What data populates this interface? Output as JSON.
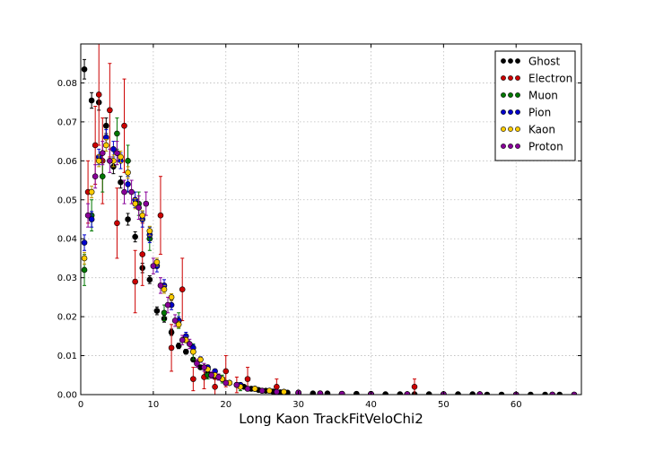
{
  "chart_data": {
    "type": "scatter",
    "title": "",
    "xlabel": "Long Kaon TrackFitVeloChi2",
    "ylabel": "",
    "xlim": [
      0,
      69
    ],
    "ylim": [
      0,
      0.09
    ],
    "xticks": [
      "0",
      "10",
      "20",
      "30",
      "40",
      "50",
      "60"
    ],
    "xtick_values": [
      0,
      10,
      20,
      30,
      40,
      50,
      60
    ],
    "yticks": [
      "0.00",
      "0.01",
      "0.02",
      "0.03",
      "0.04",
      "0.05",
      "0.06",
      "0.07",
      "0.08"
    ],
    "ytick_values": [
      0,
      0.01,
      0.02,
      0.03,
      0.04,
      0.05,
      0.06,
      0.07,
      0.08
    ],
    "grid": true,
    "legend_position": "top-right",
    "series": [
      {
        "name": "Ghost",
        "color": "#000000",
        "errcolor": "#000000",
        "x": [
          0.5,
          1.5,
          2.5,
          3.5,
          4.5,
          5.5,
          6.5,
          7.5,
          8.5,
          9.5,
          10.5,
          11.5,
          12.5,
          13.5,
          14.5,
          15.5,
          16.5,
          17.5,
          18.5,
          19.5,
          20.5,
          21.5,
          22.5,
          23.5,
          24.5,
          25.5,
          26.5,
          27.5,
          28.5,
          30,
          32,
          34,
          36,
          38,
          40,
          42,
          44,
          46,
          48,
          50,
          52,
          54,
          56,
          58,
          60,
          62,
          64,
          66,
          68
        ],
        "y": [
          0.0835,
          0.0755,
          0.075,
          0.069,
          0.0585,
          0.0545,
          0.045,
          0.0405,
          0.0325,
          0.0295,
          0.0215,
          0.0195,
          0.016,
          0.0125,
          0.011,
          0.009,
          0.007,
          0.0055,
          0.0045,
          0.004,
          0.003,
          0.0025,
          0.002,
          0.0015,
          0.0012,
          0.001,
          0.0008,
          0.0006,
          0.0005,
          0.0004,
          0.0003,
          0.0003,
          0.0002,
          0.0002,
          0.0002,
          0.0001,
          0.0001,
          0.0001,
          0.0001,
          0.0001,
          0.0001,
          0.0001,
          0,
          0,
          0,
          0,
          0,
          0,
          0
        ],
        "err": [
          0.0025,
          0.002,
          0.002,
          0.002,
          0.0018,
          0.0015,
          0.0015,
          0.0013,
          0.0012,
          0.001,
          0.001,
          0.0009,
          0.0008,
          0.0007,
          0.0006,
          0.0005,
          0.0005,
          0.0004,
          0.0004,
          0.0003,
          0.0003,
          0.0003,
          0.0002,
          0.0002,
          0.0002,
          0.0002,
          0.0001,
          0.0001,
          0.0001,
          0.0001,
          0.0001,
          0.0001,
          0.0001,
          0.0001,
          0.0001,
          0,
          0,
          0,
          0,
          0,
          0,
          0,
          0,
          0,
          0,
          0,
          0,
          0,
          0
        ]
      },
      {
        "name": "Electron",
        "color": "#cc0000",
        "errcolor": "#cc0000",
        "x": [
          1,
          2,
          2.5,
          3,
          4,
          5,
          6,
          7.5,
          8.5,
          11,
          12.5,
          14,
          15.5,
          17,
          18.5,
          20,
          21.5,
          23,
          27,
          46
        ],
        "y": [
          0.052,
          0.064,
          0.077,
          0.06,
          0.073,
          0.044,
          0.069,
          0.029,
          0.036,
          0.046,
          0.012,
          0.027,
          0.004,
          0.0045,
          0.002,
          0.006,
          0.0025,
          0.004,
          0.002,
          0.002
        ],
        "err": [
          0.008,
          0.01,
          0.013,
          0.011,
          0.012,
          0.009,
          0.012,
          0.008,
          0.008,
          0.01,
          0.006,
          0.008,
          0.003,
          0.003,
          0.002,
          0.004,
          0.002,
          0.003,
          0.002,
          0.002
        ]
      },
      {
        "name": "Muon",
        "color": "#007700",
        "errcolor": "#007700",
        "x": [
          0.5,
          1.5,
          3,
          5,
          6.5,
          8,
          9.5,
          11.5,
          13.5,
          15.5,
          17.5,
          19.5,
          22,
          25,
          28
        ],
        "y": [
          0.032,
          0.046,
          0.056,
          0.067,
          0.06,
          0.049,
          0.04,
          0.021,
          0.019,
          0.011,
          0.005,
          0.004,
          0.002,
          0.001,
          0.0005
        ],
        "err": [
          0.004,
          0.004,
          0.004,
          0.004,
          0.004,
          0.003,
          0.003,
          0.002,
          0.002,
          0.002,
          0.001,
          0.001,
          0.001,
          0.0005,
          0.0003
        ]
      },
      {
        "name": "Pion",
        "color": "#0000cc",
        "errcolor": "#0000cc",
        "x": [
          0.5,
          1.5,
          2.5,
          3.5,
          4.5,
          5.5,
          6.5,
          7.5,
          8.5,
          9.5,
          10.5,
          11.5,
          12.5,
          13.5,
          14.5,
          15.5,
          16.5,
          17.5,
          18.5,
          19.5,
          20.5,
          22,
          24,
          26,
          28,
          30,
          33,
          36,
          40,
          45,
          50,
          55,
          60,
          65
        ],
        "y": [
          0.039,
          0.045,
          0.061,
          0.066,
          0.063,
          0.06,
          0.054,
          0.05,
          0.045,
          0.041,
          0.033,
          0.028,
          0.023,
          0.019,
          0.015,
          0.012,
          0.009,
          0.007,
          0.006,
          0.004,
          0.003,
          0.0025,
          0.0015,
          0.001,
          0.0007,
          0.0005,
          0.0003,
          0.0002,
          0.0001,
          0.0001,
          0.0001,
          0.0001,
          0,
          0
        ],
        "err": [
          0.002,
          0.002,
          0.002,
          0.002,
          0.002,
          0.002,
          0.002,
          0.002,
          0.002,
          0.002,
          0.0015,
          0.0015,
          0.0012,
          0.001,
          0.001,
          0.0008,
          0.0007,
          0.0006,
          0.0005,
          0.0004,
          0.0003,
          0.0003,
          0.0002,
          0.0002,
          0.0001,
          0.0001,
          0.0001,
          0.0001,
          0.0001,
          0,
          0,
          0,
          0,
          0
        ]
      },
      {
        "name": "Kaon",
        "color": "#ffcc00",
        "errcolor": "#bb9900",
        "x": [
          0.5,
          1.5,
          2.5,
          3.5,
          4.5,
          5.5,
          6.5,
          7.5,
          8.5,
          9.5,
          10.5,
          11.5,
          12.5,
          13.5,
          14.5,
          15.5,
          16.5,
          17.5,
          18.5,
          19.5,
          20.5,
          22,
          24,
          26,
          28,
          30,
          33,
          36,
          40,
          45,
          50,
          55,
          60,
          65
        ],
        "y": [
          0.035,
          0.052,
          0.06,
          0.064,
          0.06,
          0.061,
          0.057,
          0.049,
          0.046,
          0.042,
          0.034,
          0.027,
          0.025,
          0.018,
          0.014,
          0.011,
          0.009,
          0.0065,
          0.005,
          0.004,
          0.003,
          0.002,
          0.0015,
          0.001,
          0.0007,
          0.0005,
          0.0003,
          0.0002,
          0.0001,
          0.0001,
          0.0001,
          0.0001,
          0,
          0
        ],
        "err": [
          0.0015,
          0.0015,
          0.0015,
          0.0015,
          0.0015,
          0.0015,
          0.0015,
          0.0013,
          0.0012,
          0.0012,
          0.001,
          0.001,
          0.0009,
          0.0008,
          0.0007,
          0.0006,
          0.0005,
          0.0004,
          0.0004,
          0.0003,
          0.0003,
          0.0002,
          0.0002,
          0.0001,
          0.0001,
          0.0001,
          0.0001,
          0,
          0,
          0,
          0,
          0,
          0,
          0
        ]
      },
      {
        "name": "Proton",
        "color": "#880099",
        "errcolor": "#880099",
        "x": [
          1,
          2,
          3,
          4,
          5,
          6,
          7,
          8,
          9,
          10,
          11,
          12,
          13,
          14,
          15,
          16,
          17,
          18,
          19,
          20,
          21.5,
          23,
          25,
          27,
          30,
          33,
          36,
          40,
          45,
          50,
          55,
          60,
          65,
          68
        ],
        "y": [
          0.046,
          0.056,
          0.062,
          0.06,
          0.062,
          0.052,
          0.052,
          0.048,
          0.049,
          0.033,
          0.028,
          0.023,
          0.019,
          0.014,
          0.013,
          0.008,
          0.007,
          0.005,
          0.0045,
          0.003,
          0.0025,
          0.0015,
          0.001,
          0.0007,
          0.0005,
          0.0003,
          0.0002,
          0.0001,
          0.0001,
          0.0001,
          0.0001,
          0,
          0,
          0
        ],
        "err": [
          0.003,
          0.003,
          0.003,
          0.003,
          0.003,
          0.003,
          0.003,
          0.003,
          0.003,
          0.002,
          0.002,
          0.002,
          0.0015,
          0.0012,
          0.0012,
          0.001,
          0.001,
          0.0008,
          0.0008,
          0.0006,
          0.0005,
          0.0004,
          0.0003,
          0.0003,
          0.0002,
          0.0002,
          0.0001,
          0.0001,
          0,
          0,
          0,
          0,
          0,
          0
        ]
      }
    ]
  }
}
